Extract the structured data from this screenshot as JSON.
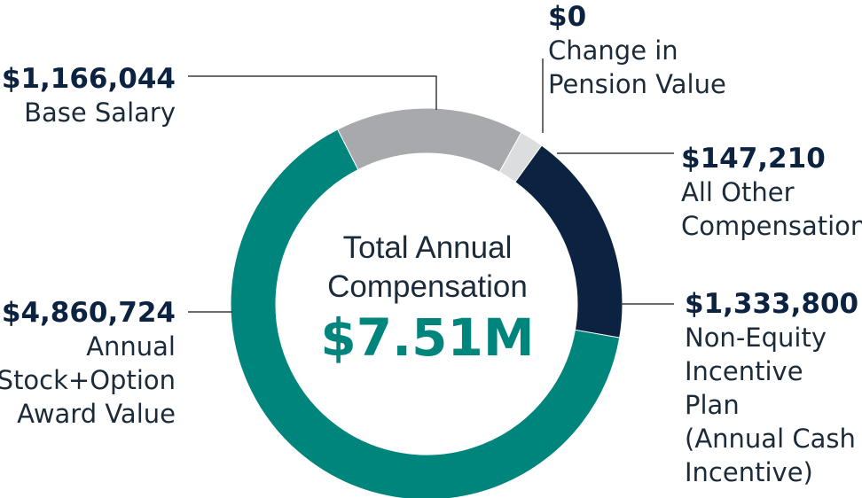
{
  "chart_data": {
    "type": "donut",
    "center_label_lines": [
      "Total Annual",
      "Compensation"
    ],
    "center_value": "$7.51M",
    "total": 7507778,
    "slices": [
      {
        "value": 1166044,
        "value_label": "$1,166,044",
        "label_lines": [
          "Base Salary"
        ],
        "color": "#a7a9ac"
      },
      {
        "value": 0,
        "value_label": "$0",
        "label_lines": [
          "Change in",
          "Pension Value"
        ],
        "color": "#dcdddf"
      },
      {
        "value": 147210,
        "value_label": "$147,210",
        "label_lines": [
          "All Other",
          "Compensation"
        ],
        "color": "#dcdddf"
      },
      {
        "value": 1333800,
        "value_label": "$1,333,800",
        "label_lines": [
          "Non-Equity",
          "Incentive Plan",
          "(Annual Cash",
          "Incentive)"
        ],
        "color": "#0b2240"
      },
      {
        "value": 4860724,
        "value_label": "$4,860,724",
        "label_lines": [
          "Annual",
          "Stock+Option",
          "Award Value"
        ],
        "color": "#00857c"
      }
    ]
  }
}
